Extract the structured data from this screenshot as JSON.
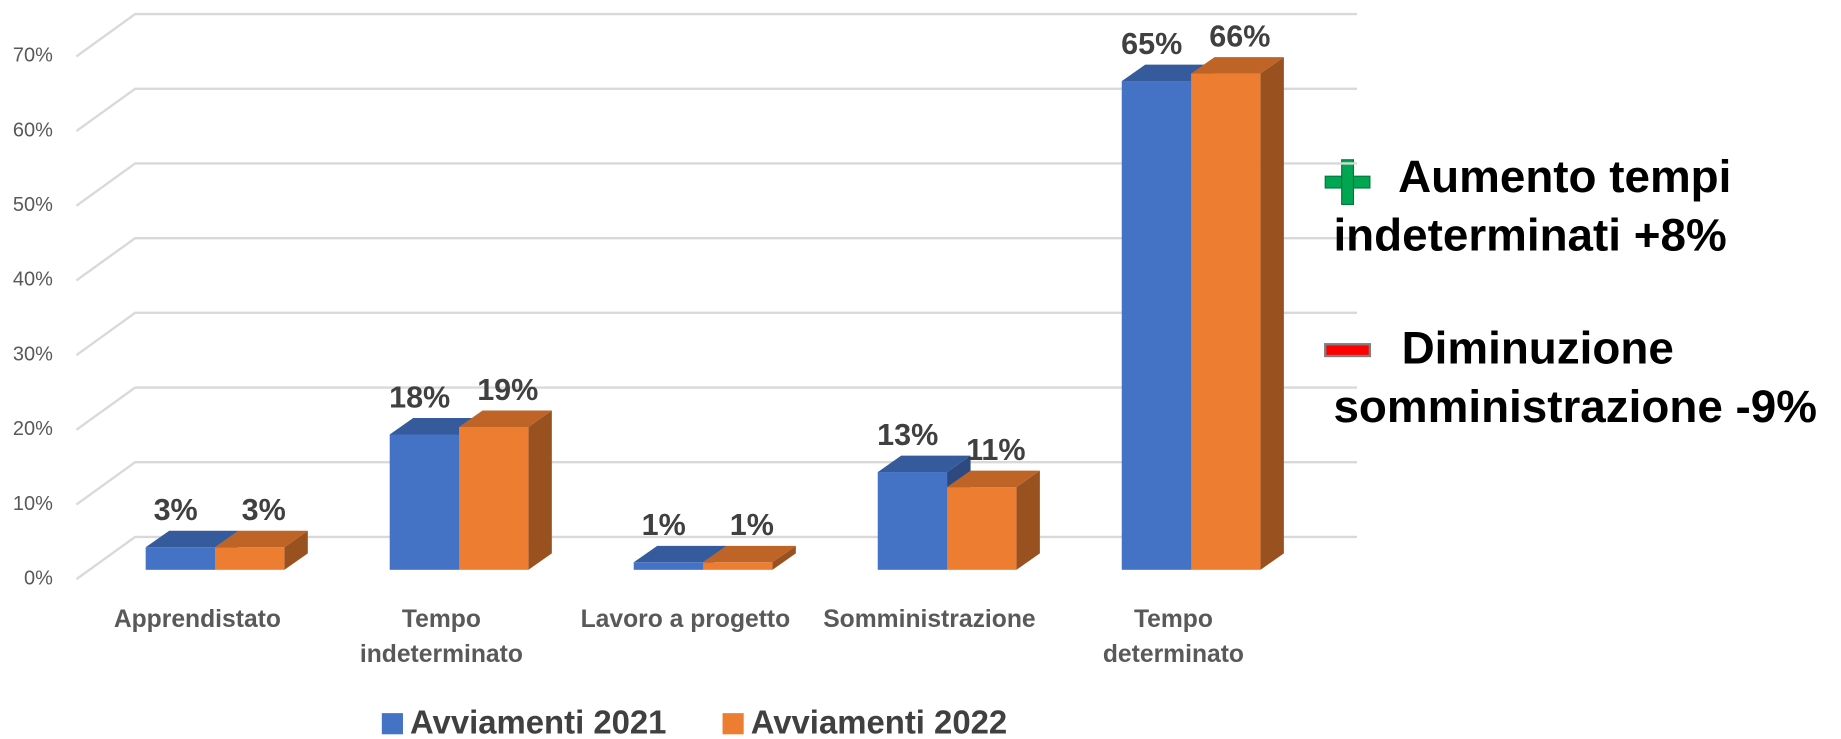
{
  "chart_data": {
    "type": "bar3d",
    "categories": [
      [
        "Apprendistato"
      ],
      [
        "Tempo",
        "indeterminato"
      ],
      [
        "Lavoro a progetto"
      ],
      [
        "Somministrazione"
      ],
      [
        "Tempo",
        "determinato"
      ]
    ],
    "series": [
      {
        "name": "Avviamenti 2021",
        "color": "#4472c4",
        "values": [
          3,
          18,
          1,
          13,
          65
        ],
        "value_labels": [
          "3%",
          "18%",
          "1%",
          "13%",
          "65%"
        ]
      },
      {
        "name": "Avviamenti 2022",
        "color": "#ed7d31",
        "values": [
          3,
          19,
          1,
          11,
          66
        ],
        "value_labels": [
          "3%",
          "19%",
          "1%",
          "11%",
          "66%"
        ]
      }
    ],
    "ylim": [
      0,
      70
    ],
    "yticks": [
      {
        "value": 0,
        "label": "0%"
      },
      {
        "value": 10,
        "label": "10%"
      },
      {
        "value": 20,
        "label": "20%"
      },
      {
        "value": 30,
        "label": "30%"
      },
      {
        "value": 40,
        "label": "40%"
      },
      {
        "value": 50,
        "label": "50%"
      },
      {
        "value": 60,
        "label": "60%"
      },
      {
        "value": 70,
        "label": "70%"
      }
    ],
    "grid": true,
    "legend": "bottom",
    "annotations": [
      {
        "lines": [
          "Aumento tempi",
          "indeterminati +8%"
        ]
      },
      {
        "lines": [
          "Diminuzione",
          "somministrazione -9%"
        ]
      }
    ]
  }
}
